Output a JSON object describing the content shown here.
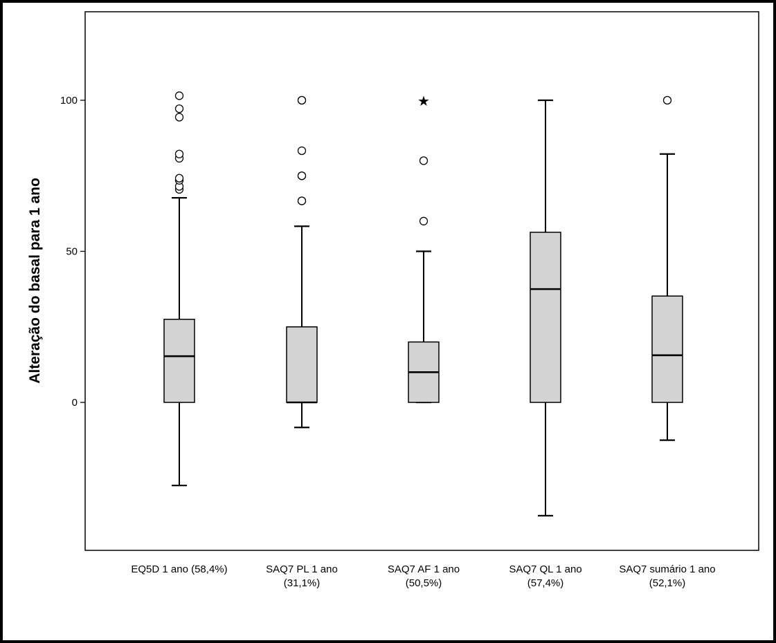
{
  "chart_data": {
    "type": "boxplot",
    "title": "",
    "xlabel": "",
    "ylabel": "Alteração do basal para 1 ano",
    "ylim": [
      -48,
      126
    ],
    "yticks": [
      0,
      50,
      100
    ],
    "ytick_labels": [
      "0",
      "50",
      "100"
    ],
    "grid": false,
    "categories": [
      {
        "line1": "EQ5D 1 ano (58,4%)",
        "line2": ""
      },
      {
        "line1": "SAQ7 PL 1 ano",
        "line2": "(31,1%)"
      },
      {
        "line1": "SAQ7 AF 1 ano",
        "line2": "(50,5%)"
      },
      {
        "line1": "SAQ7 QL 1 ano",
        "line2": "(57,4%)"
      },
      {
        "line1": "SAQ7 sumário 1 ano",
        "line2": "(52,1%)"
      }
    ],
    "boxes": [
      {
        "whisker_low": -27.5,
        "q1": 0,
        "median": 15.3,
        "q3": 27.5,
        "whisker_high": 67.7,
        "outliers": [
          70.5,
          71.5,
          73.5,
          74.2,
          80.8,
          82.2,
          94.4,
          97.2,
          101.5
        ],
        "extremes": []
      },
      {
        "whisker_low": -8.3,
        "q1": 0,
        "median": 0,
        "q3": 25,
        "whisker_high": 58.3,
        "outliers": [
          66.7,
          66.7,
          75,
          75,
          83.3,
          100,
          100
        ],
        "extremes": []
      },
      {
        "whisker_low": 0,
        "q1": 0,
        "median": 10,
        "q3": 20,
        "whisker_high": 50,
        "outliers": [
          60,
          80
        ],
        "extremes": [
          100
        ]
      },
      {
        "whisker_low": -37.5,
        "q1": 0,
        "median": 37.5,
        "q3": 56.3,
        "whisker_high": 100,
        "outliers": [],
        "extremes": []
      },
      {
        "whisker_low": -12.5,
        "q1": 0,
        "median": 15.6,
        "q3": 35.2,
        "whisker_high": 82.2,
        "outliers": [
          100
        ],
        "extremes": []
      }
    ],
    "colors": {
      "box_fill": "#d3d3d3",
      "stroke": "#000000"
    }
  }
}
